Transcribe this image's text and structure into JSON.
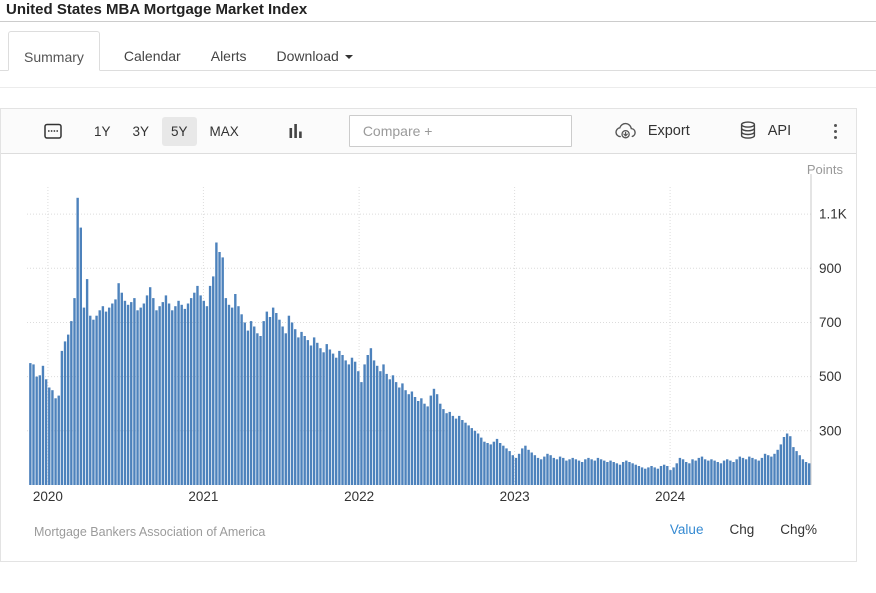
{
  "page": {
    "title": "United States MBA Mortgage Market Index"
  },
  "tabs": [
    {
      "label": "Summary",
      "active": true
    },
    {
      "label": "Calendar",
      "active": false
    },
    {
      "label": "Alerts",
      "active": false
    },
    {
      "label": "Download",
      "active": false,
      "has_caret": true
    }
  ],
  "toolbar": {
    "ranges": [
      {
        "label": "1Y",
        "active": false
      },
      {
        "label": "3Y",
        "active": false
      },
      {
        "label": "5Y",
        "active": true
      },
      {
        "label": "MAX",
        "active": false
      }
    ],
    "compare_placeholder": "Compare +",
    "export_label": "Export",
    "api_label": "API"
  },
  "chart": {
    "unit_label": "Points",
    "source": "Mortgage Bankers Association of America",
    "footer_links": [
      {
        "label": "Value",
        "active": true
      },
      {
        "label": "Chg",
        "active": false
      },
      {
        "label": "Chg%",
        "active": false
      }
    ]
  },
  "colors": {
    "bar_blue": "#4d82bc",
    "active_link_blue": "#358ad2",
    "range_active_bg": "#e8e8e8"
  },
  "chart_data": {
    "type": "bar",
    "title": "United States MBA Mortgage Market Index",
    "ylabel": "Points",
    "ylim": [
      100,
      1200
    ],
    "grid": true,
    "bar_color": "#4d82bc",
    "grid_color": "#dcdcdc",
    "axis_color": "#c8c8c8",
    "y_ticks": [
      {
        "value": 300,
        "label": "300"
      },
      {
        "value": 500,
        "label": "500"
      },
      {
        "value": 700,
        "label": "700"
      },
      {
        "value": 900,
        "label": "900"
      },
      {
        "value": 1100,
        "label": "1.1K"
      }
    ],
    "x_unit": "weeks",
    "year_ticks": [
      {
        "label": "2020",
        "week": 6.0
      },
      {
        "label": "2021",
        "week": 55.3
      },
      {
        "label": "2022",
        "week": 104.7
      },
      {
        "label": "2023",
        "week": 154.0
      },
      {
        "label": "2024",
        "week": 203.3
      }
    ],
    "values": [
      550,
      545,
      500,
      505,
      540,
      490,
      460,
      450,
      420,
      430,
      595,
      630,
      655,
      705,
      790,
      1160,
      1050,
      755,
      860,
      725,
      710,
      725,
      745,
      760,
      740,
      755,
      770,
      785,
      845,
      810,
      780,
      765,
      775,
      790,
      745,
      755,
      770,
      800,
      830,
      790,
      745,
      760,
      775,
      800,
      770,
      745,
      760,
      780,
      765,
      750,
      770,
      790,
      810,
      835,
      800,
      780,
      760,
      835,
      870,
      995,
      960,
      940,
      790,
      765,
      755,
      805,
      760,
      730,
      700,
      670,
      705,
      685,
      660,
      650,
      705,
      740,
      720,
      755,
      735,
      710,
      685,
      660,
      725,
      700,
      675,
      645,
      665,
      650,
      635,
      615,
      645,
      625,
      605,
      590,
      620,
      600,
      585,
      570,
      595,
      580,
      560,
      545,
      570,
      555,
      520,
      480,
      545,
      580,
      605,
      560,
      540,
      520,
      545,
      510,
      490,
      505,
      480,
      460,
      475,
      450,
      435,
      445,
      425,
      410,
      420,
      400,
      390,
      430,
      455,
      435,
      400,
      380,
      365,
      370,
      355,
      345,
      355,
      340,
      330,
      320,
      310,
      300,
      290,
      275,
      260,
      255,
      250,
      260,
      270,
      255,
      245,
      235,
      225,
      210,
      200,
      215,
      235,
      245,
      230,
      220,
      210,
      200,
      195,
      205,
      215,
      210,
      200,
      195,
      205,
      200,
      190,
      195,
      200,
      195,
      190,
      185,
      195,
      200,
      195,
      190,
      200,
      195,
      190,
      185,
      190,
      185,
      180,
      175,
      185,
      190,
      185,
      180,
      175,
      170,
      165,
      160,
      165,
      170,
      165,
      160,
      170,
      175,
      170,
      155,
      165,
      180,
      200,
      195,
      185,
      180,
      195,
      190,
      200,
      205,
      195,
      190,
      195,
      190,
      185,
      180,
      190,
      195,
      190,
      185,
      195,
      205,
      200,
      195,
      205,
      200,
      195,
      190,
      200,
      215,
      210,
      205,
      215,
      230,
      250,
      277,
      290,
      280,
      240,
      225,
      210,
      195,
      185,
      180
    ]
  }
}
